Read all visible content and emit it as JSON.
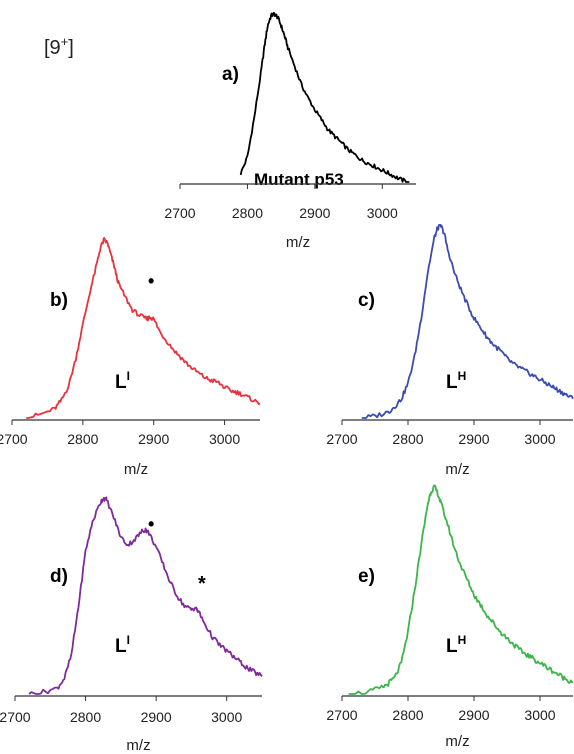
{
  "charge_label": {
    "base": "[9",
    "sup": "+",
    "close": "]"
  },
  "colors": {
    "a": "#000000",
    "b": "#e8323c",
    "c": "#3b4bb0",
    "d": "#7f2a9a",
    "e": "#3cb54a",
    "axis": "#333333"
  },
  "chart_data": [
    {
      "id": "a",
      "type": "line",
      "panel_label": "a)",
      "annotation": "Mutant p53",
      "xlabel": "m/z",
      "xlim": [
        2700,
        3050
      ],
      "xticks": [
        "2700",
        "2800",
        "2900",
        "3000"
      ],
      "ylim": [
        0,
        1
      ],
      "grid": false,
      "color": "#000000",
      "series": [
        {
          "x": [
            2790,
            2800,
            2810,
            2820,
            2825,
            2830,
            2835,
            2840,
            2845,
            2850,
            2855,
            2860,
            2870,
            2880,
            2890,
            2900,
            2910,
            2920,
            2930,
            2940,
            2950,
            2960,
            2970,
            2980,
            2990,
            3000,
            3010,
            3020,
            3030,
            3040
          ],
          "y": [
            0.05,
            0.15,
            0.38,
            0.65,
            0.8,
            0.93,
            0.99,
            1.0,
            0.98,
            0.93,
            0.87,
            0.8,
            0.69,
            0.58,
            0.5,
            0.43,
            0.37,
            0.31,
            0.27,
            0.23,
            0.19,
            0.16,
            0.13,
            0.11,
            0.09,
            0.07,
            0.05,
            0.03,
            0.01,
            0.0
          ]
        }
      ]
    },
    {
      "id": "b",
      "type": "line",
      "panel_label": "b)",
      "annotation_base": "L",
      "annotation_sup": "I",
      "marker": "•",
      "xlabel": "m/z",
      "xlim": [
        2700,
        3050
      ],
      "xticks": [
        "2700",
        "2800",
        "2900",
        "3000"
      ],
      "ylim": [
        0,
        1
      ],
      "grid": false,
      "color": "#e8323c",
      "series": [
        {
          "x": [
            2720,
            2740,
            2760,
            2770,
            2780,
            2790,
            2800,
            2810,
            2820,
            2825,
            2830,
            2835,
            2840,
            2845,
            2850,
            2860,
            2870,
            2880,
            2890,
            2895,
            2900,
            2910,
            2920,
            2930,
            2940,
            2950,
            2960,
            2970,
            2980,
            2990,
            3000,
            3010,
            3020,
            3030,
            3040,
            3050
          ],
          "y": [
            0.0,
            0.02,
            0.05,
            0.1,
            0.18,
            0.33,
            0.52,
            0.7,
            0.86,
            0.95,
            0.99,
            0.97,
            0.9,
            0.83,
            0.75,
            0.67,
            0.6,
            0.57,
            0.55,
            0.56,
            0.55,
            0.47,
            0.42,
            0.37,
            0.33,
            0.29,
            0.26,
            0.23,
            0.21,
            0.2,
            0.17,
            0.15,
            0.14,
            0.12,
            0.1,
            0.08
          ]
        }
      ]
    },
    {
      "id": "c",
      "type": "line",
      "panel_label": "c)",
      "annotation_base": "L",
      "annotation_sup": "H",
      "xlabel": "m/z",
      "xlim": [
        2700,
        3050
      ],
      "xticks": [
        "2700",
        "2800",
        "2900",
        "3000"
      ],
      "ylim": [
        0,
        1
      ],
      "grid": false,
      "color": "#3b4bb0",
      "series": [
        {
          "x": [
            2730,
            2750,
            2770,
            2780,
            2790,
            2800,
            2810,
            2820,
            2830,
            2840,
            2845,
            2850,
            2855,
            2860,
            2870,
            2880,
            2890,
            2900,
            2910,
            2920,
            2930,
            2940,
            2950,
            2960,
            2970,
            2980,
            2990,
            3000,
            3010,
            3020,
            3030,
            3040,
            3050
          ],
          "y": [
            0.0,
            0.01,
            0.03,
            0.06,
            0.1,
            0.18,
            0.32,
            0.52,
            0.76,
            0.94,
            0.99,
            1.0,
            0.96,
            0.88,
            0.76,
            0.67,
            0.59,
            0.52,
            0.47,
            0.42,
            0.38,
            0.35,
            0.31,
            0.28,
            0.26,
            0.24,
            0.22,
            0.2,
            0.18,
            0.16,
            0.14,
            0.12,
            0.1
          ]
        }
      ]
    },
    {
      "id": "d",
      "type": "line",
      "panel_label": "d)",
      "annotation_base": "L",
      "annotation_sup": "I",
      "marker_dot": "•",
      "marker_star": "*",
      "xlabel": "m/z",
      "xlim": [
        2700,
        3050
      ],
      "xticks": [
        "2700",
        "2800",
        "2900",
        "3000"
      ],
      "ylim": [
        0,
        1
      ],
      "grid": false,
      "color": "#7f2a9a",
      "series": [
        {
          "x": [
            2720,
            2740,
            2760,
            2770,
            2780,
            2790,
            2800,
            2810,
            2820,
            2825,
            2830,
            2840,
            2850,
            2860,
            2870,
            2880,
            2885,
            2890,
            2900,
            2910,
            2920,
            2930,
            2940,
            2950,
            2955,
            2960,
            2970,
            2980,
            2990,
            3000,
            3010,
            3020,
            3030,
            3040,
            3050
          ],
          "y": [
            0.0,
            0.01,
            0.03,
            0.08,
            0.2,
            0.45,
            0.73,
            0.88,
            0.97,
            1.0,
            0.99,
            0.9,
            0.8,
            0.76,
            0.79,
            0.83,
            0.84,
            0.82,
            0.75,
            0.66,
            0.57,
            0.5,
            0.45,
            0.43,
            0.44,
            0.42,
            0.35,
            0.29,
            0.25,
            0.22,
            0.19,
            0.16,
            0.13,
            0.11,
            0.09
          ]
        }
      ]
    },
    {
      "id": "e",
      "type": "line",
      "panel_label": "e)",
      "annotation_base": "L",
      "annotation_sup": "H",
      "xlabel": "m/z",
      "xlim": [
        2700,
        3050
      ],
      "xticks": [
        "2700",
        "2800",
        "2900",
        "3000"
      ],
      "ylim": [
        0,
        1
      ],
      "grid": false,
      "color": "#3cb54a",
      "series": [
        {
          "x": [
            2710,
            2740,
            2760,
            2770,
            2780,
            2790,
            2800,
            2810,
            2820,
            2830,
            2835,
            2840,
            2845,
            2850,
            2860,
            2870,
            2880,
            2890,
            2900,
            2910,
            2920,
            2930,
            2940,
            2950,
            2960,
            2970,
            2980,
            2990,
            3000,
            3010,
            3020,
            3030,
            3040,
            3050
          ],
          "y": [
            0.0,
            0.01,
            0.03,
            0.05,
            0.08,
            0.15,
            0.3,
            0.5,
            0.72,
            0.92,
            0.98,
            1.0,
            0.97,
            0.92,
            0.82,
            0.71,
            0.62,
            0.55,
            0.48,
            0.43,
            0.38,
            0.34,
            0.3,
            0.27,
            0.24,
            0.21,
            0.19,
            0.17,
            0.15,
            0.13,
            0.11,
            0.09,
            0.07,
            0.06
          ]
        }
      ]
    }
  ]
}
